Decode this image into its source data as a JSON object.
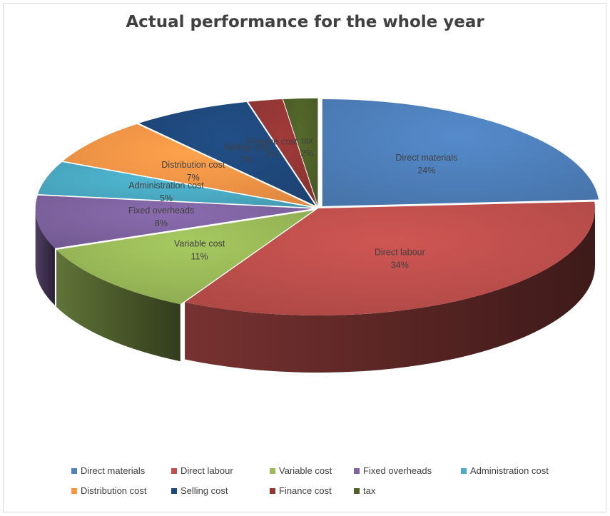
{
  "chart_data": {
    "type": "pie",
    "title": "Actual performance for the whole year",
    "style": "3d-exploded",
    "legend_position": "bottom",
    "slices": [
      {
        "name": "Direct materials",
        "value": 24,
        "label": "24%",
        "color": "#4f81bd"
      },
      {
        "name": "Direct labour",
        "value": 34,
        "label": "34%",
        "color": "#c0504d"
      },
      {
        "name": "Variable cost",
        "value": 11,
        "label": "11%",
        "color": "#9bbb59"
      },
      {
        "name": "Fixed overheads",
        "value": 8,
        "label": "8%",
        "color": "#8064a2"
      },
      {
        "name": "Administration cost",
        "value": 5,
        "label": "5%",
        "color": "#4bacc6"
      },
      {
        "name": "Distribution cost",
        "value": 7,
        "label": "7%",
        "color": "#f79646"
      },
      {
        "name": "Selling cost",
        "value": 7,
        "label": "7%",
        "color": "#1f497d"
      },
      {
        "name": "Finance cost",
        "value": 2,
        "label": "2%",
        "color": "#953735"
      },
      {
        "name": "tax",
        "value": 2,
        "label": "2%",
        "color": "#4f6228"
      }
    ]
  }
}
